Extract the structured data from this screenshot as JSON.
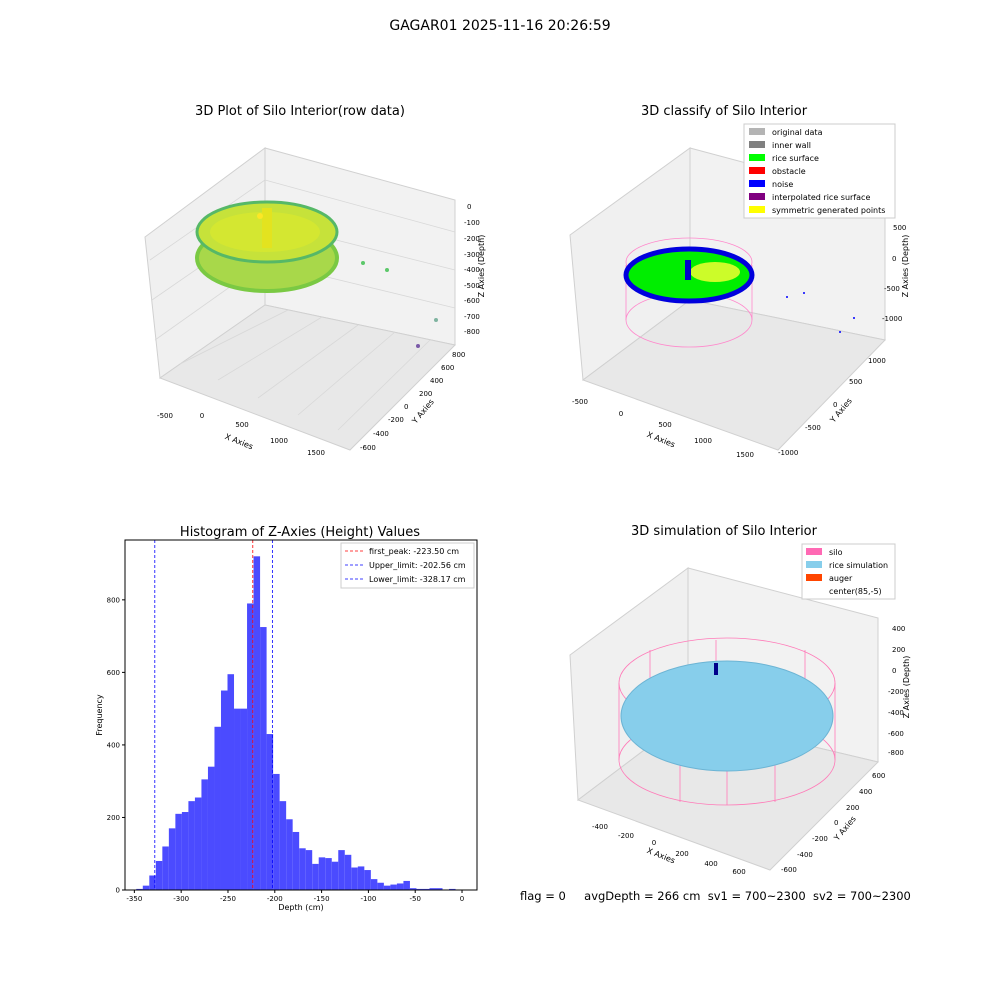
{
  "suptitle": "GAGAR01 2025-11-16 20:26:59",
  "panels": {
    "raw": {
      "title": "3D Plot of Silo Interior(row data)",
      "xlabel": "X Axies",
      "ylabel": "Y Axies",
      "zlabel": "Z Axies (Depth)",
      "xticks": [
        "-500",
        "0",
        "500",
        "1000",
        "1500"
      ],
      "yticks": [
        "800",
        "600",
        "400",
        "200",
        "0",
        "-200",
        "-400",
        "-600"
      ],
      "zticks": [
        "0",
        "-100",
        "-200",
        "-300",
        "-400",
        "-500",
        "-600",
        "-700",
        "-800"
      ]
    },
    "classify": {
      "title": "3D classify of Silo Interior",
      "xlabel": "X Axies",
      "ylabel": "Y Axies",
      "zlabel": "Z Axies (Depth)",
      "xticks": [
        "-500",
        "0",
        "500",
        "1000",
        "1500"
      ],
      "yticks": [
        "1000",
        "500",
        "0",
        "-500",
        "-1000"
      ],
      "zticks": [
        "500",
        "0",
        "-500",
        "-1000"
      ],
      "legend": [
        {
          "label": "original data",
          "color": "#b4b4b4"
        },
        {
          "label": "inner wall",
          "color": "#808080"
        },
        {
          "label": "rice surface",
          "color": "#00ff00"
        },
        {
          "label": "obstacle",
          "color": "#ff0000"
        },
        {
          "label": "noise",
          "color": "#0000ff"
        },
        {
          "label": "interpolated rice surface",
          "color": "#800080"
        },
        {
          "label": "symmetric generated points",
          "color": "#ffff00"
        }
      ]
    },
    "simulation": {
      "title": "3D simulation of Silo Interior",
      "xlabel": "X Axies",
      "ylabel": "Y Axies",
      "zlabel": "Z Axies (Depth)",
      "xticks": [
        "-400",
        "-200",
        "0",
        "200",
        "400",
        "600"
      ],
      "yticks": [
        "600",
        "400",
        "200",
        "0",
        "-200",
        "-400",
        "-600"
      ],
      "zticks": [
        "400",
        "200",
        "0",
        "-200",
        "-400",
        "-600",
        "-800"
      ],
      "legend": [
        {
          "label": "silo",
          "color": "#ff69b4"
        },
        {
          "label": "rice simulation",
          "color": "#87ceeb"
        },
        {
          "label": "auger",
          "color": "#ff4500"
        },
        {
          "label": "center(85,-5)",
          "color": "none"
        }
      ]
    }
  },
  "chart_data": {
    "type": "bar",
    "title": "Histogram of Z-Axies (Height) Values",
    "xlabel": "Depth (cm)",
    "ylabel": "Frequency",
    "xlim": [
      -360,
      16
    ],
    "ylim": [
      0,
      965
    ],
    "xticks": [
      -350,
      -300,
      -250,
      -200,
      -150,
      -100,
      -50,
      0
    ],
    "yticks": [
      0,
      200,
      400,
      600,
      800
    ],
    "bin_width": 6.96,
    "bin_start": -347.95,
    "bar_color": "#4b4bff",
    "counts": [
      3,
      12,
      40,
      80,
      120,
      170,
      210,
      215,
      245,
      255,
      305,
      340,
      450,
      550,
      595,
      500,
      500,
      790,
      920,
      725,
      430,
      320,
      245,
      195,
      160,
      115,
      110,
      72,
      90,
      88,
      78,
      110,
      97,
      62,
      65,
      55,
      30,
      20,
      12,
      15,
      18,
      25,
      5,
      3,
      3,
      5,
      5,
      0,
      3,
      0,
      0,
      0,
      0,
      0,
      0,
      0,
      0,
      0,
      0,
      0,
      0
    ],
    "vlines": [
      {
        "label": "first_peak: -223.50 cm",
        "value": -223.5,
        "color": "#ff0000"
      },
      {
        "label": "Upper_limit: -202.56 cm",
        "value": -202.56,
        "color": "#0000ff"
      },
      {
        "label": "Lower_limit: -328.17 cm",
        "value": -328.17,
        "color": "#0000ff"
      }
    ],
    "legend_position": "upper right"
  },
  "footer": {
    "flag": "flag = 0",
    "avg": "avgDepth = 266 cm",
    "sv1": "sv1 = 700~2300",
    "sv2": "sv2 = 700~2300"
  }
}
